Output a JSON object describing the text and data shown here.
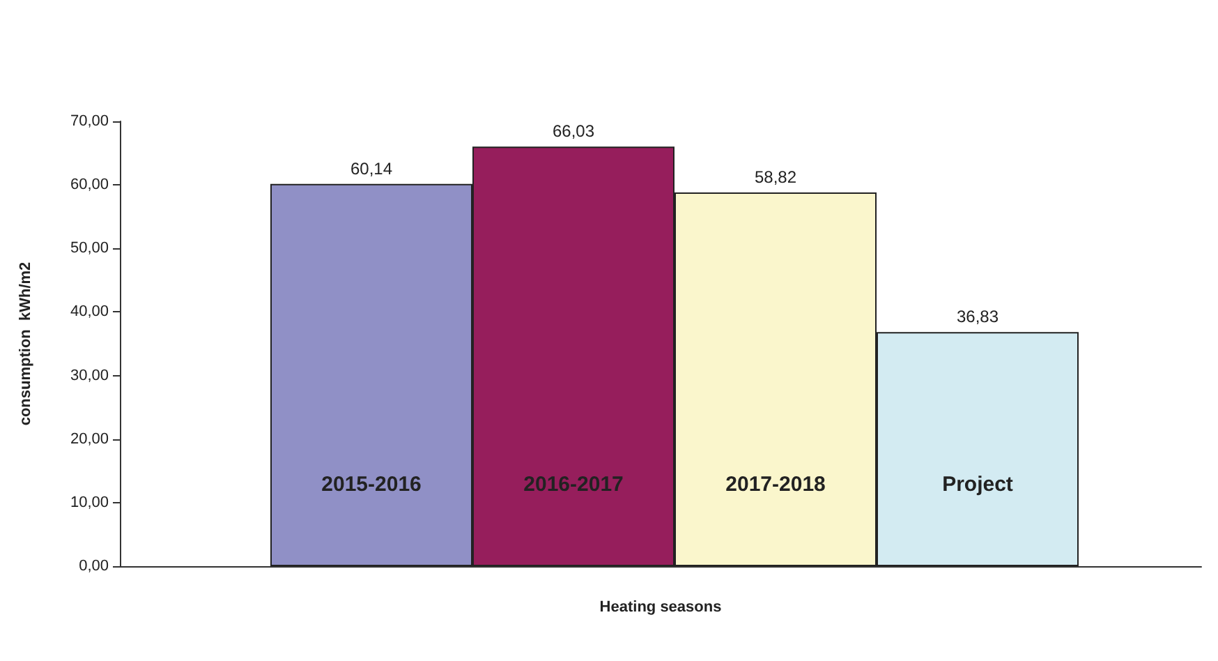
{
  "chart_data": {
    "type": "bar",
    "xlabel": "Heating seasons",
    "ylabel": "consumption  kWh/m2",
    "categories": [
      "2015-2016",
      "2016-2017",
      "2017-2018",
      "Project"
    ],
    "values": [
      60.14,
      66.03,
      58.82,
      36.83
    ],
    "colors": [
      "#9090c6",
      "#961e5c",
      "#faf6cc",
      "#d3ebf2"
    ],
    "value_labels": [
      "60,14",
      "66,03",
      "58,82",
      "36,83"
    ],
    "ylim": [
      0,
      70
    ],
    "yticks": [
      {
        "value": 0,
        "label": "0,00"
      },
      {
        "value": 10,
        "label": "10,00"
      },
      {
        "value": 20,
        "label": "20,00"
      },
      {
        "value": 30,
        "label": "30,00"
      },
      {
        "value": 40,
        "label": "40,00"
      },
      {
        "value": 50,
        "label": "50,00"
      },
      {
        "value": 60,
        "label": "60,00"
      },
      {
        "value": 70,
        "label": "70,00"
      }
    ],
    "grid": false
  }
}
